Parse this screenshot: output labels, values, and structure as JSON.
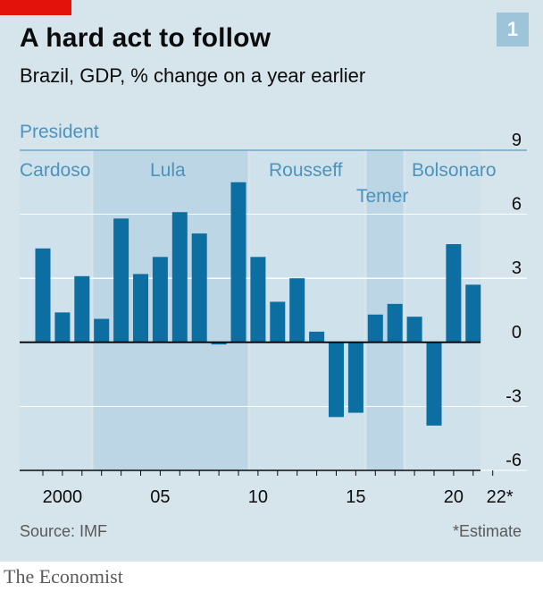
{
  "header": {
    "title": "A hard act to follow",
    "subtitle": "Brazil, GDP, % change on a year earlier",
    "chart_number": "1"
  },
  "footer": {
    "source": "Source: IMF",
    "footnote": "*Estimate",
    "brand": "The Economist"
  },
  "colors": {
    "bar": "#0d6ea2",
    "band_light": "#cfe2ec",
    "band_dark": "#bcd6e5",
    "president_label": "#4c93bd",
    "red_tag": "#e3120b",
    "background": "#d6e4ec"
  },
  "chart_data": {
    "type": "bar",
    "title": "A hard act to follow",
    "subtitle": "Brazil, GDP, % change on a year earlier",
    "x": [
      1999,
      2000,
      2001,
      2002,
      2003,
      2004,
      2005,
      2006,
      2007,
      2008,
      2009,
      2010,
      2011,
      2012,
      2013,
      2014,
      2015,
      2016,
      2017,
      2018,
      2019,
      2020,
      2021,
      2022
    ],
    "values": [
      4.4,
      1.4,
      3.1,
      1.1,
      5.8,
      3.2,
      4.0,
      6.1,
      5.1,
      -0.1,
      7.5,
      4.0,
      1.9,
      3.0,
      0.5,
      -3.5,
      -3.3,
      1.3,
      1.8,
      1.2,
      -3.9,
      4.6,
      2.7,
      null
    ],
    "x_ticks": [
      {
        "x": 2000,
        "label": "2000"
      },
      {
        "x": 2005,
        "label": "05"
      },
      {
        "x": 2010,
        "label": "10"
      },
      {
        "x": 2015,
        "label": "15"
      },
      {
        "x": 2020,
        "label": "20"
      },
      {
        "x": 2022,
        "label": "22*"
      }
    ],
    "y_ticks": [
      {
        "y": 9,
        "label": "9"
      },
      {
        "y": 6,
        "label": "6"
      },
      {
        "y": 3,
        "label": "3"
      },
      {
        "y": 0,
        "label": "0"
      },
      {
        "y": -3,
        "label": "-3"
      },
      {
        "y": -6,
        "label": "-6"
      }
    ],
    "ylim": [
      -6,
      9
    ],
    "xlim": [
      1999,
      2022
    ],
    "grid": true,
    "band_label": "President",
    "presidents": [
      {
        "name": "Cardoso",
        "start": 1999,
        "end": 2002
      },
      {
        "name": "Lula",
        "start": 2003,
        "end": 2010
      },
      {
        "name": "Rousseff",
        "start": 2011,
        "end": 2016
      },
      {
        "name": "Temer",
        "start": 2016,
        "end": 2018
      },
      {
        "name": "Bolsonaro",
        "start": 2019,
        "end": 2022
      }
    ],
    "estimate_note": "*Estimate"
  }
}
